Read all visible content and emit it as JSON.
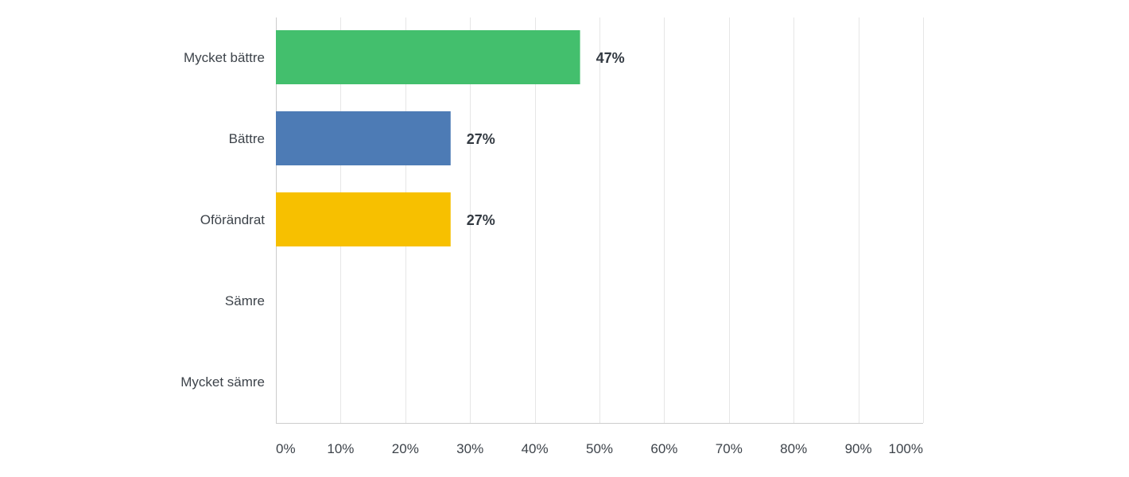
{
  "chart_data": {
    "type": "bar",
    "orientation": "horizontal",
    "categories": [
      "Mycket bättre",
      "Bättre",
      "Oförändrat",
      "Sämre",
      "Mycket sämre"
    ],
    "values": [
      47,
      27,
      27,
      0,
      0
    ],
    "value_labels": [
      "47%",
      "27%",
      "27%",
      "",
      ""
    ],
    "colors": [
      "#43bf6d",
      "#4d7bb5",
      "#f7c000",
      "#f7c000",
      "#f7c000"
    ],
    "xlim": [
      0,
      100
    ],
    "x_ticks": [
      0,
      10,
      20,
      30,
      40,
      50,
      60,
      70,
      80,
      90,
      100
    ],
    "x_tick_labels": [
      "0%",
      "10%",
      "20%",
      "30%",
      "40%",
      "50%",
      "60%",
      "70%",
      "80%",
      "90%",
      "100%"
    ],
    "grid": true,
    "legend": "none"
  }
}
